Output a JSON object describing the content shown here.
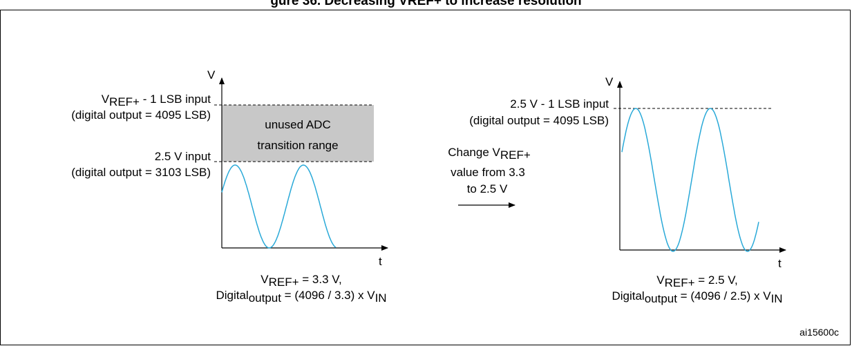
{
  "title": "gure 36. Decreasing VREF+ to increase resolution",
  "colors": {
    "waveform": "#29a9d8",
    "unused_range": "#c8c8c8",
    "axes": "#000000"
  },
  "left_graph": {
    "y_axis_label": "V",
    "x_axis_label": "t",
    "top_level": {
      "v": "V",
      "sub": "REF+",
      "rest": " - 1 LSB input",
      "output": "(digital output = 4095 LSB)"
    },
    "mid_level": {
      "line1": "2.5 V input",
      "output": "(digital output = 3103 LSB)"
    },
    "unused_box": [
      "unused ADC",
      "transition range"
    ],
    "caption1": {
      "v": "V",
      "sub": "REF+",
      "rest": " = 3.3 V,"
    },
    "caption2": {
      "pre": "Digital",
      "sub": "output",
      "mid": " = (4096 / 3.3) x V",
      "sub2": "IN"
    }
  },
  "arrow_label": {
    "line1_pre": "Change V",
    "line1_sub": "REF+",
    "line2": "value from 3.3",
    "line3": "to 2.5 V"
  },
  "right_graph": {
    "y_axis_label": "V",
    "x_axis_label": "t",
    "top_level": {
      "line1": "2.5 V - 1 LSB input",
      "output": "(digital output = 4095 LSB)"
    },
    "caption1": {
      "v": "V",
      "sub": "REF+",
      "rest": " = 2.5 V,"
    },
    "caption2": {
      "pre": "Digital",
      "sub": "output",
      "mid": " = (4096 / 2.5) x V",
      "sub2": "IN"
    }
  },
  "figure_id": "ai15600c"
}
